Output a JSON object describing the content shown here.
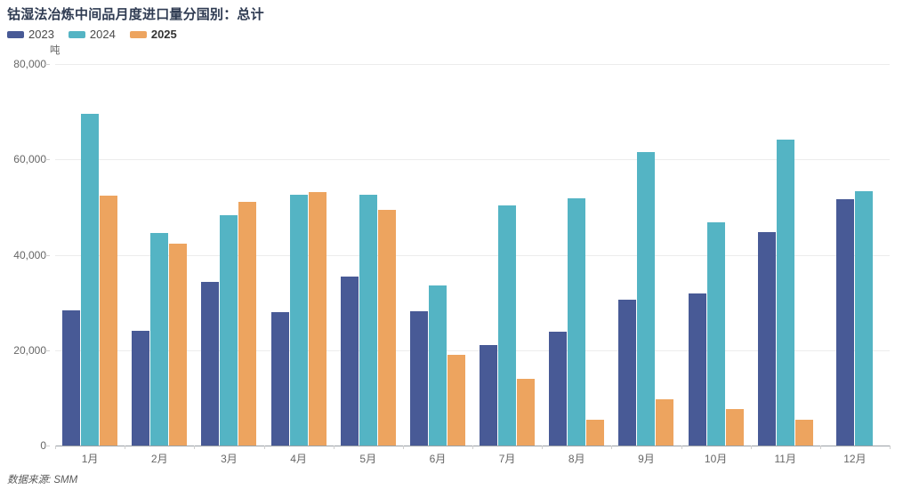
{
  "header": {
    "title": "钴湿法冶炼中间品月度进口量分国别：总计"
  },
  "legend": {
    "items": [
      {
        "label": "2023",
        "color": "#485a96"
      },
      {
        "label": "2024",
        "color": "#54b4c4"
      },
      {
        "label": "2025",
        "color": "#eda45f"
      }
    ]
  },
  "footer": {
    "source": "数据来源: SMM"
  },
  "chart_data": {
    "type": "bar",
    "title": "钴湿法冶炼中间品月度进口量分国别：总计",
    "unit": "吨",
    "xlabel": "",
    "ylabel": "吨",
    "ylim": [
      0,
      80000
    ],
    "y_ticks": [
      "0",
      "20,000",
      "40,000",
      "60,000",
      "80,000"
    ],
    "grid": true,
    "legend_position": "top-left",
    "categories": [
      "1月",
      "2月",
      "3月",
      "4月",
      "5月",
      "6月",
      "7月",
      "8月",
      "9月",
      "10月",
      "11月",
      "12月"
    ],
    "series": [
      {
        "name": "2023",
        "color": "#485a96",
        "values": [
          28300,
          24000,
          34400,
          28000,
          35400,
          28100,
          21100,
          23800,
          30600,
          31900,
          44800,
          51700
        ]
      },
      {
        "name": "2024",
        "color": "#54b4c4",
        "values": [
          69500,
          44500,
          48300,
          52600,
          52500,
          33600,
          50300,
          51800,
          61600,
          46800,
          64200,
          53300
        ]
      },
      {
        "name": "2025",
        "color": "#eda45f",
        "values": [
          52400,
          42300,
          51100,
          53100,
          49500,
          19000,
          13900,
          5400,
          9700,
          7600,
          5400,
          null
        ]
      }
    ]
  }
}
